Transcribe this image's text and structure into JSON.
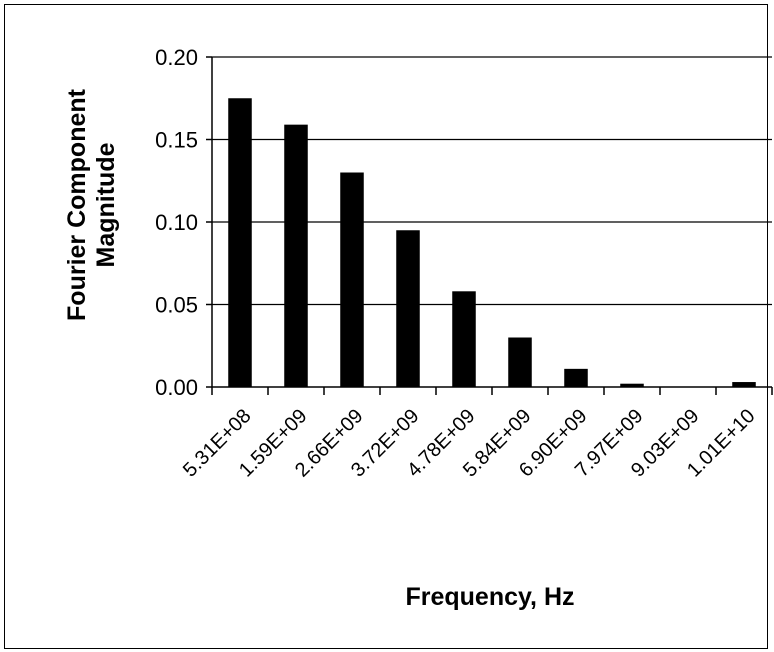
{
  "chart_data": {
    "type": "bar",
    "title": "",
    "xlabel": "Frequency, Hz",
    "ylabel_lines": [
      "Fourier Component",
      "Magnitude"
    ],
    "ylim": [
      0,
      0.2
    ],
    "yticks": [
      "0.00",
      "0.05",
      "0.10",
      "0.15",
      "0.20"
    ],
    "categories": [
      "5.31E+08",
      "1.59E+09",
      "2.66E+09",
      "3.72E+09",
      "4.78E+09",
      "5.84E+09",
      "6.90E+09",
      "7.97E+09",
      "9.03E+09",
      "1.01E+10"
    ],
    "values": [
      0.175,
      0.159,
      0.13,
      0.095,
      0.058,
      0.03,
      0.011,
      0.002,
      0.0,
      0.003
    ],
    "grid": true,
    "bar_color": "#000000",
    "grid_color": "#000000"
  }
}
